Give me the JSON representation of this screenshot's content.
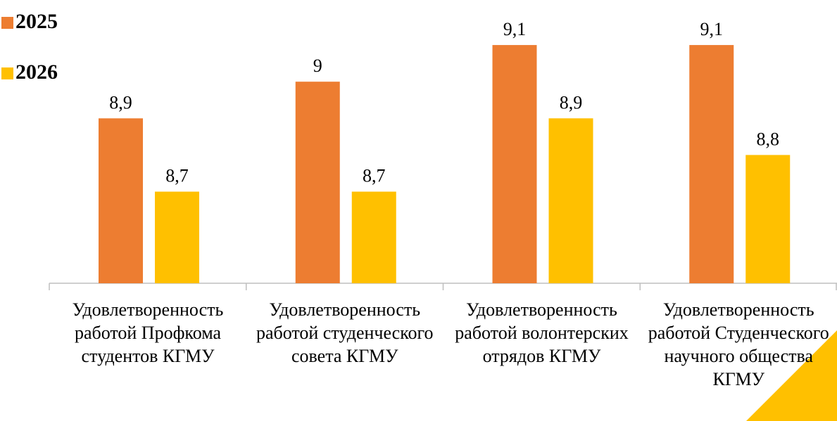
{
  "chart_data": {
    "type": "bar",
    "categories": [
      "Удовлетворенность работой Профкома студентов КГМУ",
      "Удовлетворенность работой студенческого совета КГМУ",
      "Удовлетворенность работой волонтерских отрядов КГМУ",
      "Удовлетворенность работой Студенческого научного общества КГМУ"
    ],
    "series": [
      {
        "name": "2025",
        "color": "#ed7d31",
        "values": [
          8.9,
          9,
          9.1,
          9.1
        ],
        "value_labels": [
          "8,9",
          "9",
          "9,1",
          "9,1"
        ]
      },
      {
        "name": "2026",
        "color": "#ffc000",
        "values": [
          8.7,
          8.7,
          8.9,
          8.8
        ],
        "value_labels": [
          "8,7",
          "8,7",
          "8,9",
          "8,8"
        ]
      }
    ],
    "ylim": [
      8.45,
      9.15
    ],
    "legend": "top-left"
  }
}
